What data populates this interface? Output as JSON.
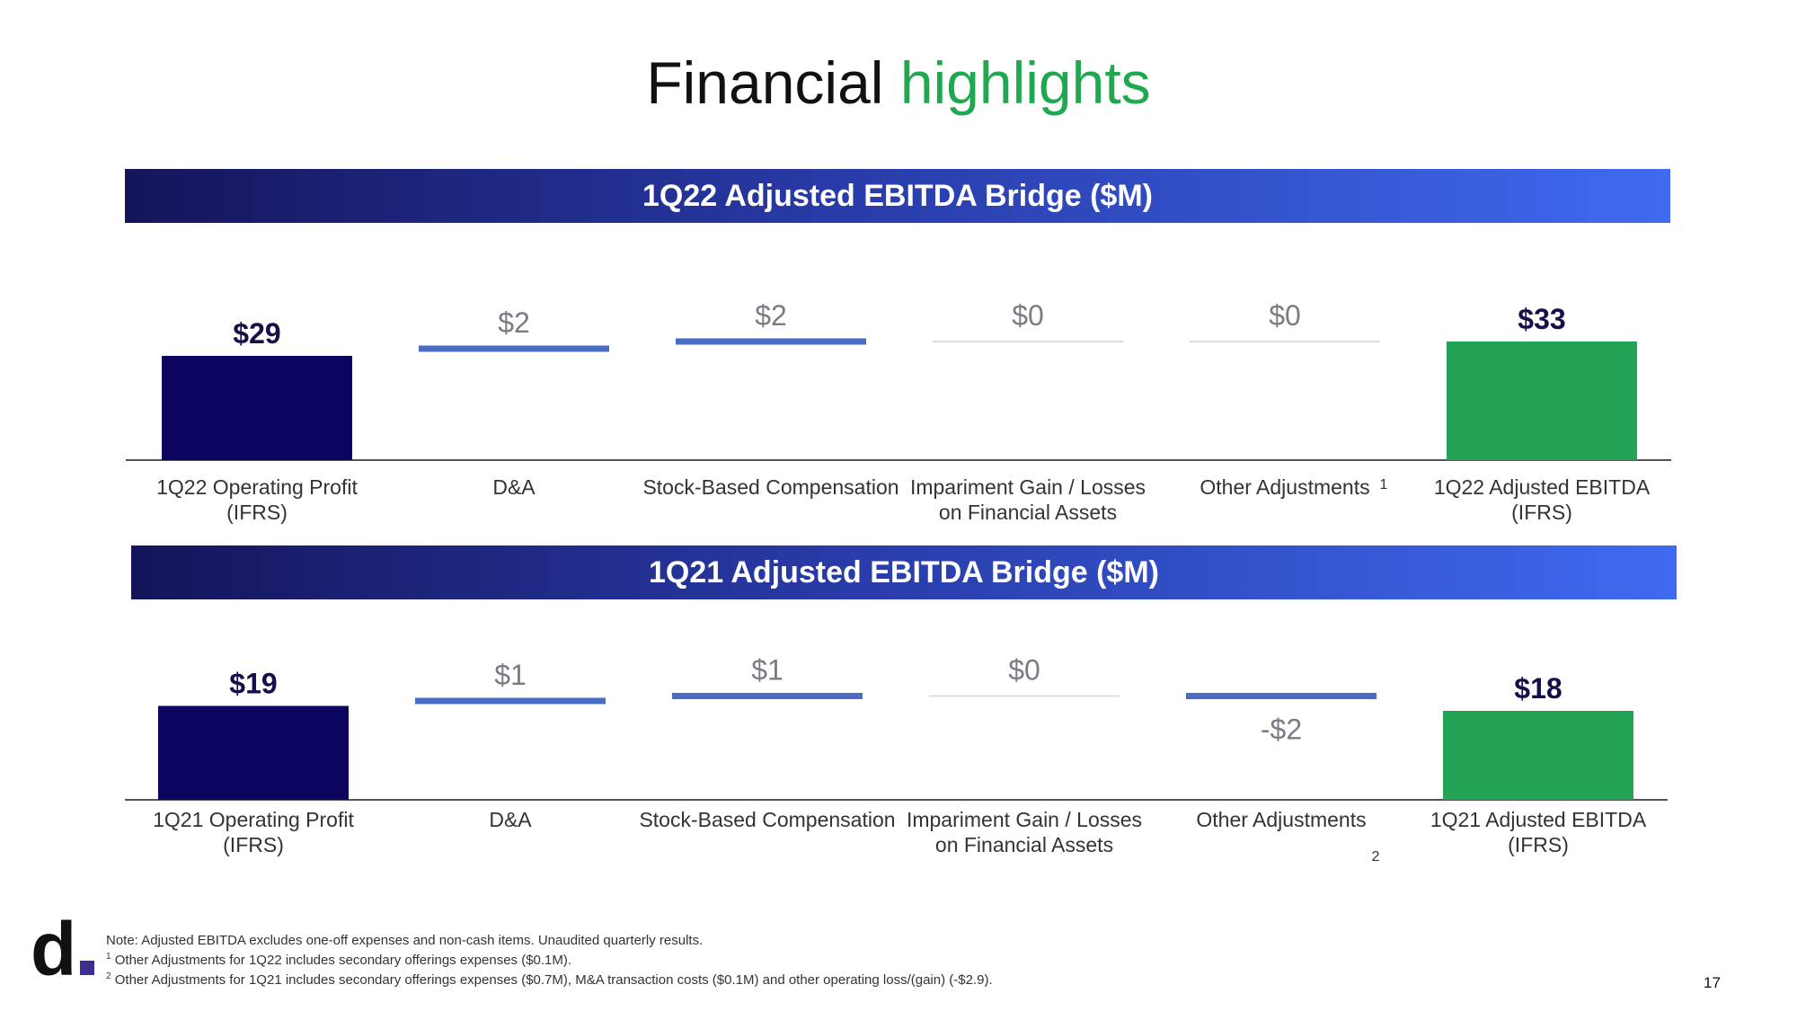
{
  "title": {
    "main": "Financial",
    "accent": "highlights"
  },
  "colors": {
    "accent": "#1fa84f",
    "total_bar": "#0b0560",
    "result_bar": "#22a356",
    "delta_bar": "#4a6cc5",
    "zero_line": "#dcdcdc"
  },
  "chart_data": [
    {
      "type": "bar",
      "banner": "1Q22 Adjusted EBITDA Bridge ($M)",
      "categories": [
        {
          "lines": [
            "1Q22 Operating Profit",
            "(IFRS)"
          ],
          "sup": ""
        },
        {
          "lines": [
            "D&A"
          ],
          "sup": ""
        },
        {
          "lines": [
            "Stock-Based Compensation"
          ],
          "sup": ""
        },
        {
          "lines": [
            "Impariment Gain / Losses",
            "on Financial Assets"
          ],
          "sup": ""
        },
        {
          "lines": [
            "Other Adjustments"
          ],
          "sup": "1"
        },
        {
          "lines": [
            "1Q22 Adjusted EBITDA",
            "(IFRS)"
          ],
          "sup": ""
        }
      ],
      "values": [
        29,
        2,
        2,
        0,
        0,
        33
      ],
      "labels": [
        "$29",
        "$2",
        "$2",
        "$0",
        "$0",
        "$33"
      ],
      "kinds": [
        "total",
        "delta",
        "delta",
        "delta",
        "delta",
        "result"
      ]
    },
    {
      "type": "bar",
      "banner": "1Q21 Adjusted EBITDA Bridge ($M)",
      "categories": [
        {
          "lines": [
            "1Q21 Operating Profit",
            "(IFRS)"
          ],
          "sup": ""
        },
        {
          "lines": [
            "D&A"
          ],
          "sup": ""
        },
        {
          "lines": [
            "Stock-Based Compensation"
          ],
          "sup": ""
        },
        {
          "lines": [
            "Impariment Gain / Losses",
            "on Financial Assets"
          ],
          "sup": ""
        },
        {
          "lines": [
            "Other Adjustments"
          ],
          "sup": "2"
        },
        {
          "lines": [
            "1Q21 Adjusted EBITDA",
            "(IFRS)"
          ],
          "sup": ""
        }
      ],
      "values": [
        19,
        1,
        1,
        0,
        -2,
        18
      ],
      "labels": [
        "$19",
        "$1",
        "$1",
        "$0",
        "-$2",
        "$18"
      ],
      "kinds": [
        "total",
        "delta",
        "delta",
        "delta",
        "delta",
        "result"
      ]
    }
  ],
  "notes": {
    "main": "Note: Adjusted EBITDA excludes one-off expenses and non-cash items. Unaudited quarterly results.",
    "n1_mark": "1",
    "n1": "Other Adjustments for 1Q22 includes secondary offerings expenses ($0.1M).",
    "n2_mark": "2",
    "n2": "Other Adjustments for 1Q21 includes secondary offerings expenses ($0.7M), M&A transaction costs ($0.1M) and other operating loss/(gain) (-$2.9)."
  },
  "page_number": "17"
}
